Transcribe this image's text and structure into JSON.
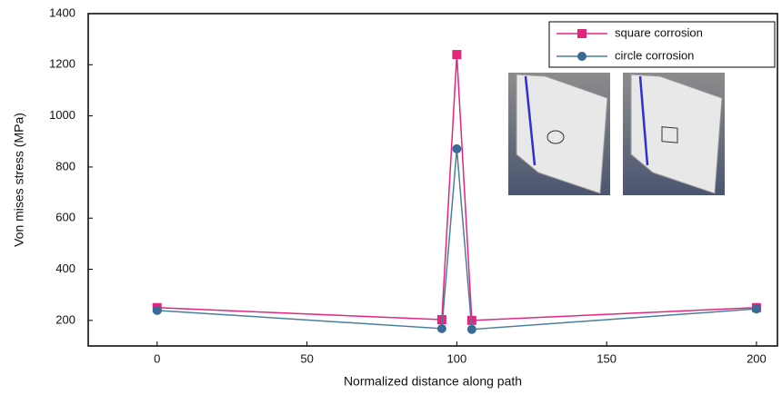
{
  "chart_data": {
    "type": "line",
    "x_label": "Normalized distance along path",
    "y_label": "Von mises stress (MPa)",
    "x": [
      0,
      95,
      100,
      105,
      200
    ],
    "series": [
      {
        "name": "square corrosion",
        "color": "#e3267d",
        "marker": "square",
        "values": [
          250,
          203,
          1240,
          200,
          250
        ]
      },
      {
        "name": "circle corrosion",
        "color": "#4a7f9c",
        "marker": "circle",
        "values": [
          239,
          168,
          871,
          165,
          245
        ]
      }
    ],
    "xlim": [
      -23,
      207
    ],
    "xticks": [
      0,
      50,
      100,
      150,
      200
    ],
    "ylim": [
      100,
      1400
    ],
    "yticks": [
      200,
      400,
      600,
      800,
      1000,
      1200,
      1400
    ],
    "legend": "upper right",
    "grid": false
  }
}
